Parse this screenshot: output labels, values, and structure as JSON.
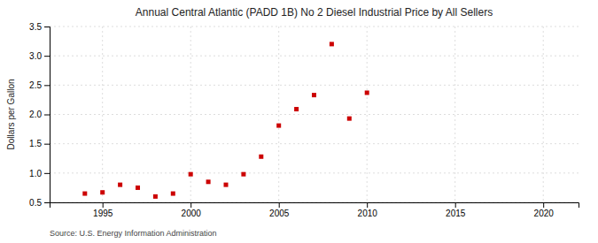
{
  "chart_data": {
    "type": "scatter",
    "title": "Annual Central Atlantic (PADD 1B) No 2 Diesel Industrial Price by All Sellers",
    "ylabel": "Dollars per Gallon",
    "source": "Source: U.S. Energy Information Administration",
    "color": "#cc0000",
    "marker": "square",
    "grid": true,
    "xlim": [
      1992,
      2022
    ],
    "ylim": [
      0.5,
      3.5
    ],
    "xticks": [
      1995,
      2000,
      2005,
      2010,
      2015,
      2020
    ],
    "yticks": [
      0.5,
      {
        "value": 1,
        "label": "1.0"
      },
      1.5,
      {
        "value": 2,
        "label": "2.0"
      },
      2.5,
      {
        "value": 3,
        "label": "3.0"
      },
      3.5
    ],
    "x": [
      1994,
      1995,
      1996,
      1997,
      1998,
      1999,
      2000,
      2001,
      2002,
      2003,
      2004,
      2005,
      2006,
      2007,
      2008,
      2009,
      2010
    ],
    "values": [
      0.65,
      0.67,
      0.8,
      0.75,
      0.6,
      0.65,
      0.98,
      0.85,
      0.8,
      0.98,
      1.28,
      1.81,
      2.09,
      2.33,
      3.2,
      1.93,
      2.37
    ]
  }
}
